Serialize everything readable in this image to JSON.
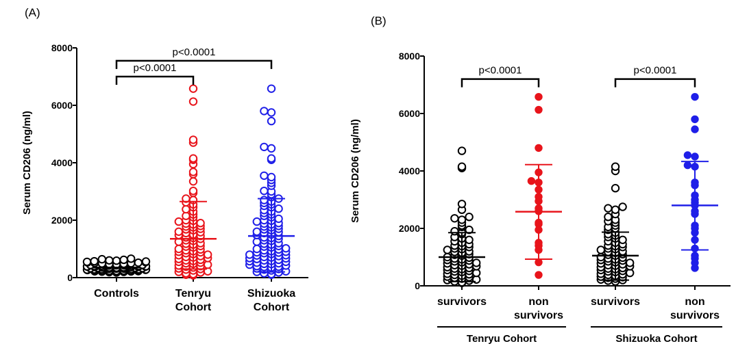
{
  "chart_data": [
    {
      "type": "scatter",
      "panel_label": "(A)",
      "ylabel": "Serum CD206 (ng/ml)",
      "ylim": [
        0,
        8000
      ],
      "yticks": [
        0,
        2000,
        4000,
        6000,
        8000
      ],
      "categories": [
        {
          "label_lines": [
            "Controls"
          ],
          "color": "#000000",
          "filled": false,
          "mean": 350,
          "sd_low": null,
          "sd_high": null,
          "values": [
            620,
            590,
            560,
            540,
            520,
            500,
            480,
            460,
            450,
            440,
            430,
            420,
            410,
            400,
            390,
            380,
            370,
            360,
            350,
            340,
            330,
            320,
            310,
            300,
            290,
            280,
            270,
            260,
            250,
            240,
            230,
            220,
            210,
            200,
            190,
            180,
            660,
            640,
            600,
            570,
            550,
            530,
            510,
            490,
            470,
            455,
            445,
            435,
            425,
            415,
            405,
            395,
            385,
            375,
            365,
            355,
            345,
            335,
            325,
            315,
            305,
            295,
            285,
            275,
            265,
            255,
            245,
            235,
            225,
            215
          ]
        },
        {
          "label_lines": [
            "Tenryu",
            "Cohort"
          ],
          "color": "#e8141b",
          "filled": false,
          "mean": 1350,
          "sd_low": 300,
          "sd_high": 2650,
          "values": [
            6580,
            6130,
            4800,
            4700,
            4150,
            4100,
            3950,
            3680,
            3600,
            3350,
            3020,
            2950,
            2750,
            2700,
            2620,
            2550,
            2450,
            2380,
            2300,
            2200,
            2150,
            2100,
            2000,
            1950,
            1900,
            1850,
            1800,
            1750,
            1700,
            1650,
            1600,
            1550,
            1500,
            1450,
            1400,
            1350,
            1300,
            1250,
            1200,
            1150,
            1100,
            1050,
            1000,
            950,
            900,
            850,
            800,
            750,
            700,
            650,
            600,
            550,
            500,
            450,
            400,
            350,
            300,
            250,
            200,
            150,
            100,
            80,
            1980,
            1880,
            1780,
            1680,
            1580,
            1480,
            1380,
            1280,
            1180,
            1080,
            980,
            880,
            780,
            680,
            580,
            480,
            380,
            280,
            180,
            120,
            920,
            820,
            720,
            620,
            520,
            420,
            320,
            220
          ]
        },
        {
          "label_lines": [
            "Shizuoka",
            "Cohort"
          ],
          "color": "#1f1fe8",
          "filled": false,
          "mean": 1450,
          "sd_low": 200,
          "sd_high": 2750,
          "values": [
            6580,
            5800,
            5750,
            5450,
            4550,
            4500,
            4150,
            4100,
            3550,
            3500,
            3400,
            3300,
            3200,
            3020,
            3000,
            2900,
            2800,
            2750,
            2700,
            2650,
            2600,
            2550,
            2500,
            2450,
            2400,
            2350,
            2300,
            2250,
            2200,
            2150,
            2100,
            2050,
            2000,
            1950,
            1900,
            1850,
            1800,
            1750,
            1700,
            1650,
            1600,
            1550,
            1500,
            1450,
            1400,
            1350,
            1300,
            1250,
            1200,
            1150,
            1100,
            1050,
            1000,
            950,
            900,
            850,
            800,
            750,
            700,
            650,
            600,
            550,
            500,
            450,
            400,
            350,
            300,
            250,
            200,
            150,
            100,
            1980,
            1880,
            1780,
            1680,
            1580,
            1480,
            1380,
            1280,
            1180,
            1080,
            980,
            880,
            780,
            680,
            580,
            480,
            380,
            280,
            180,
            1020,
            920,
            820,
            720,
            620,
            520,
            420,
            320,
            220,
            120,
            870,
            770,
            670,
            570,
            470,
            370
          ]
        }
      ],
      "comparisons": [
        {
          "from": 0,
          "to": 2,
          "y": 7550,
          "label": "p<0.0001"
        },
        {
          "from": 0,
          "to": 1,
          "y": 7000,
          "label": "p<0.0001"
        }
      ]
    },
    {
      "type": "scatter",
      "panel_label": "(B)",
      "ylabel": "Serum CD206 (ng/ml)",
      "ylim": [
        0,
        8000
      ],
      "yticks": [
        0,
        2000,
        4000,
        6000,
        8000
      ],
      "categories": [
        {
          "label_lines": [
            "survivors"
          ],
          "color": "#000000",
          "filled": false,
          "mean": 1000,
          "sd_low": 150,
          "sd_high": 1850,
          "values": [
            4700,
            4150,
            4100,
            2850,
            2650,
            2400,
            2350,
            2300,
            2200,
            2100,
            2050,
            1950,
            1900,
            1850,
            1800,
            1700,
            1650,
            1600,
            1550,
            1500,
            1450,
            1400,
            1350,
            1300,
            1250,
            1200,
            1150,
            1100,
            1050,
            1000,
            950,
            900,
            850,
            800,
            750,
            700,
            650,
            600,
            550,
            500,
            450,
            400,
            350,
            300,
            250,
            200,
            150,
            100,
            1380,
            1280,
            1180,
            1080,
            980,
            880,
            780,
            680,
            580,
            480,
            380,
            280,
            180,
            120,
            920,
            820,
            720,
            620,
            520,
            420,
            320,
            220
          ]
        },
        {
          "label_lines": [
            "non",
            "survivors"
          ],
          "color": "#e8141b",
          "filled": true,
          "mean": 2580,
          "sd_low": 930,
          "sd_high": 4220,
          "values": [
            6580,
            6130,
            4800,
            3950,
            3650,
            3600,
            3350,
            3100,
            2950,
            2700,
            2600,
            2200,
            2150,
            1950,
            1500,
            1400,
            1250,
            820,
            380
          ]
        },
        {
          "label_lines": [
            "survivors"
          ],
          "color": "#000000",
          "filled": false,
          "mean": 1050,
          "sd_low": 200,
          "sd_high": 1870,
          "values": [
            4150,
            4000,
            3400,
            2750,
            2700,
            2650,
            2500,
            2400,
            2300,
            2250,
            2200,
            2100,
            2050,
            2000,
            1950,
            1850,
            1800,
            1750,
            1700,
            1650,
            1600,
            1550,
            1500,
            1450,
            1400,
            1350,
            1300,
            1250,
            1200,
            1150,
            1100,
            1050,
            1000,
            950,
            900,
            850,
            800,
            750,
            700,
            650,
            600,
            550,
            500,
            450,
            400,
            350,
            300,
            250,
            200,
            150,
            1380,
            1280,
            1180,
            1080,
            980,
            880,
            780,
            680,
            580,
            480,
            380,
            280,
            180,
            920,
            820,
            720,
            620,
            520,
            420,
            320,
            220
          ]
        },
        {
          "label_lines": [
            "non",
            "survivors"
          ],
          "color": "#1f1fe8",
          "filled": true,
          "mean": 2800,
          "sd_low": 1250,
          "sd_high": 4330,
          "values": [
            6580,
            5800,
            5450,
            4550,
            4500,
            4200,
            4150,
            3600,
            3500,
            3150,
            3000,
            2900,
            2800,
            2600,
            2500,
            2100,
            2000,
            1850,
            1600,
            1300,
            1050,
            950,
            620,
            800
          ]
        }
      ],
      "comparisons": [
        {
          "from": 0,
          "to": 1,
          "y": 7200,
          "label": "p<0.0001"
        },
        {
          "from": 2,
          "to": 3,
          "y": 7200,
          "label": "p<0.0001"
        }
      ],
      "groups": [
        {
          "from": 0,
          "to": 1,
          "label": "Tenryu Cohort"
        },
        {
          "from": 2,
          "to": 3,
          "label": "Shizuoka Cohort"
        }
      ]
    }
  ]
}
